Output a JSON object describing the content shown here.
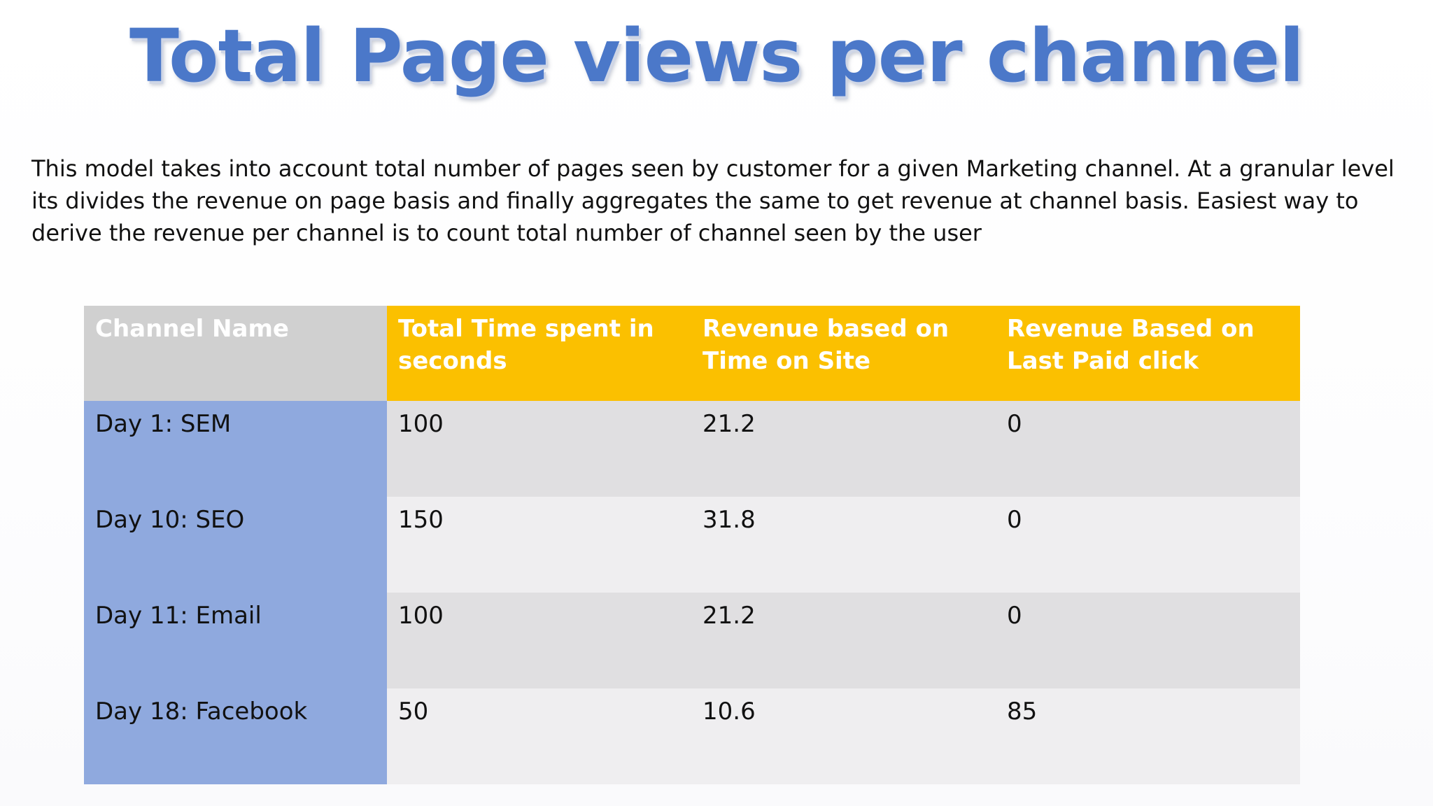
{
  "slide": {
    "title": "Total Page views per channel",
    "description": "This model takes into account total number of  pages seen by customer for a  given Marketing channel. At a granular level its divides the revenue on page basis and finally aggregates the same to get revenue at channel basis.  Easiest way to derive the revenue per channel is to count total number of channel seen by the user"
  },
  "table": {
    "headers": [
      "Channel Name",
      "Total Time spent in seconds",
      "Revenue based on Time on Site",
      "Revenue Based on Last Paid click"
    ],
    "rows": [
      [
        "Day 1: SEM",
        "100",
        "21.2",
        "0"
      ],
      [
        "Day 10: SEO",
        "150",
        "31.8",
        "0"
      ],
      [
        "Day 11: Email",
        "100",
        "21.2",
        "0"
      ],
      [
        "Day 18: Facebook",
        "50",
        "10.6",
        "85"
      ]
    ]
  },
  "colors": {
    "title": "#4b78c9",
    "header_name_bg": "#d0d0d0",
    "header_bg": "#fbc000",
    "name_column_bg": "#8fa9de",
    "row_dark_bg": "#e0dfe1",
    "row_light_bg": "#efeef0"
  }
}
